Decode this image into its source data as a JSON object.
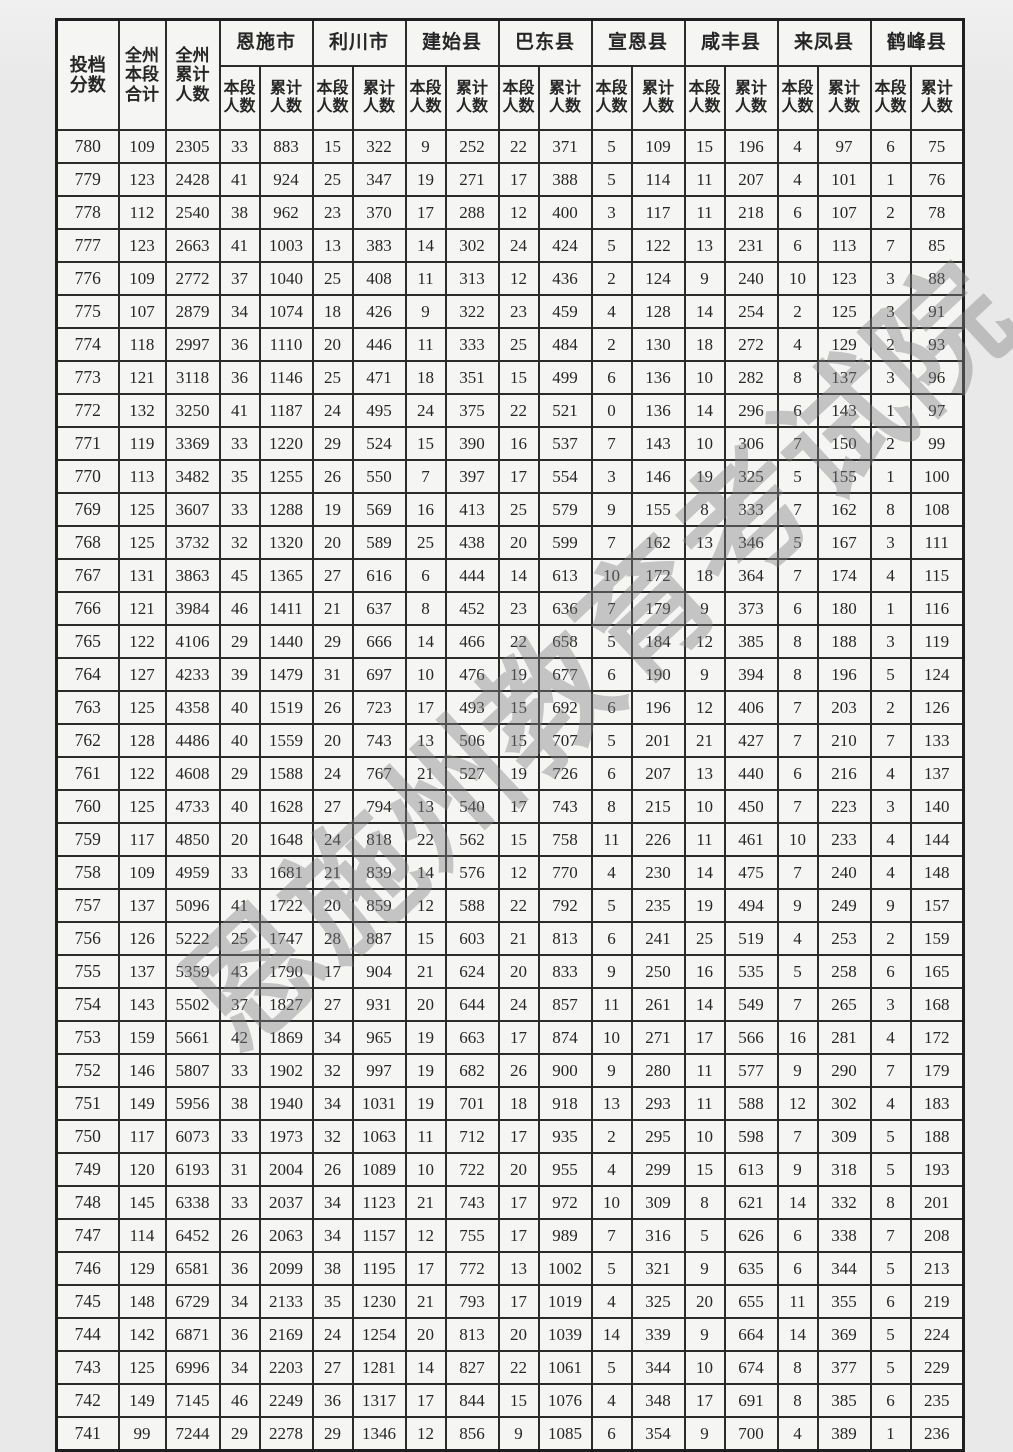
{
  "watermark": {
    "text": "恩施州教育考试院",
    "color": "#808080"
  },
  "table": {
    "corner_header": "投档\n分数",
    "state_segment_header": "全州\n本段\n合计",
    "state_cumulative_header": "全州\n累计\n人数",
    "regions": [
      "恩施市",
      "利川市",
      "建始县",
      "巴东县",
      "宣恩县",
      "咸丰县",
      "来凤县",
      "鹤峰县"
    ],
    "sub_header_segment": "本段\n人数",
    "sub_header_cumulative": "累计\n人数",
    "rows": [
      [
        780,
        109,
        2305,
        33,
        883,
        15,
        322,
        9,
        252,
        22,
        371,
        5,
        109,
        15,
        196,
        4,
        97,
        6,
        75
      ],
      [
        779,
        123,
        2428,
        41,
        924,
        25,
        347,
        19,
        271,
        17,
        388,
        5,
        114,
        11,
        207,
        4,
        101,
        1,
        76
      ],
      [
        778,
        112,
        2540,
        38,
        962,
        23,
        370,
        17,
        288,
        12,
        400,
        3,
        117,
        11,
        218,
        6,
        107,
        2,
        78
      ],
      [
        777,
        123,
        2663,
        41,
        1003,
        13,
        383,
        14,
        302,
        24,
        424,
        5,
        122,
        13,
        231,
        6,
        113,
        7,
        85
      ],
      [
        776,
        109,
        2772,
        37,
        1040,
        25,
        408,
        11,
        313,
        12,
        436,
        2,
        124,
        9,
        240,
        10,
        123,
        3,
        88
      ],
      [
        775,
        107,
        2879,
        34,
        1074,
        18,
        426,
        9,
        322,
        23,
        459,
        4,
        128,
        14,
        254,
        2,
        125,
        3,
        91
      ],
      [
        774,
        118,
        2997,
        36,
        1110,
        20,
        446,
        11,
        333,
        25,
        484,
        2,
        130,
        18,
        272,
        4,
        129,
        2,
        93
      ],
      [
        773,
        121,
        3118,
        36,
        1146,
        25,
        471,
        18,
        351,
        15,
        499,
        6,
        136,
        10,
        282,
        8,
        137,
        3,
        96
      ],
      [
        772,
        132,
        3250,
        41,
        1187,
        24,
        495,
        24,
        375,
        22,
        521,
        0,
        136,
        14,
        296,
        6,
        143,
        1,
        97
      ],
      [
        771,
        119,
        3369,
        33,
        1220,
        29,
        524,
        15,
        390,
        16,
        537,
        7,
        143,
        10,
        306,
        7,
        150,
        2,
        99
      ],
      [
        770,
        113,
        3482,
        35,
        1255,
        26,
        550,
        7,
        397,
        17,
        554,
        3,
        146,
        19,
        325,
        5,
        155,
        1,
        100
      ],
      [
        769,
        125,
        3607,
        33,
        1288,
        19,
        569,
        16,
        413,
        25,
        579,
        9,
        155,
        8,
        333,
        7,
        162,
        8,
        108
      ],
      [
        768,
        125,
        3732,
        32,
        1320,
        20,
        589,
        25,
        438,
        20,
        599,
        7,
        162,
        13,
        346,
        5,
        167,
        3,
        111
      ],
      [
        767,
        131,
        3863,
        45,
        1365,
        27,
        616,
        6,
        444,
        14,
        613,
        10,
        172,
        18,
        364,
        7,
        174,
        4,
        115
      ],
      [
        766,
        121,
        3984,
        46,
        1411,
        21,
        637,
        8,
        452,
        23,
        636,
        7,
        179,
        9,
        373,
        6,
        180,
        1,
        116
      ],
      [
        765,
        122,
        4106,
        29,
        1440,
        29,
        666,
        14,
        466,
        22,
        658,
        5,
        184,
        12,
        385,
        8,
        188,
        3,
        119
      ],
      [
        764,
        127,
        4233,
        39,
        1479,
        31,
        697,
        10,
        476,
        19,
        677,
        6,
        190,
        9,
        394,
        8,
        196,
        5,
        124
      ],
      [
        763,
        125,
        4358,
        40,
        1519,
        26,
        723,
        17,
        493,
        15,
        692,
        6,
        196,
        12,
        406,
        7,
        203,
        2,
        126
      ],
      [
        762,
        128,
        4486,
        40,
        1559,
        20,
        743,
        13,
        506,
        15,
        707,
        5,
        201,
        21,
        427,
        7,
        210,
        7,
        133
      ],
      [
        761,
        122,
        4608,
        29,
        1588,
        24,
        767,
        21,
        527,
        19,
        726,
        6,
        207,
        13,
        440,
        6,
        216,
        4,
        137
      ],
      [
        760,
        125,
        4733,
        40,
        1628,
        27,
        794,
        13,
        540,
        17,
        743,
        8,
        215,
        10,
        450,
        7,
        223,
        3,
        140
      ],
      [
        759,
        117,
        4850,
        20,
        1648,
        24,
        818,
        22,
        562,
        15,
        758,
        11,
        226,
        11,
        461,
        10,
        233,
        4,
        144
      ],
      [
        758,
        109,
        4959,
        33,
        1681,
        21,
        839,
        14,
        576,
        12,
        770,
        4,
        230,
        14,
        475,
        7,
        240,
        4,
        148
      ],
      [
        757,
        137,
        5096,
        41,
        1722,
        20,
        859,
        12,
        588,
        22,
        792,
        5,
        235,
        19,
        494,
        9,
        249,
        9,
        157
      ],
      [
        756,
        126,
        5222,
        25,
        1747,
        28,
        887,
        15,
        603,
        21,
        813,
        6,
        241,
        25,
        519,
        4,
        253,
        2,
        159
      ],
      [
        755,
        137,
        5359,
        43,
        1790,
        17,
        904,
        21,
        624,
        20,
        833,
        9,
        250,
        16,
        535,
        5,
        258,
        6,
        165
      ],
      [
        754,
        143,
        5502,
        37,
        1827,
        27,
        931,
        20,
        644,
        24,
        857,
        11,
        261,
        14,
        549,
        7,
        265,
        3,
        168
      ],
      [
        753,
        159,
        5661,
        42,
        1869,
        34,
        965,
        19,
        663,
        17,
        874,
        10,
        271,
        17,
        566,
        16,
        281,
        4,
        172
      ],
      [
        752,
        146,
        5807,
        33,
        1902,
        32,
        997,
        19,
        682,
        26,
        900,
        9,
        280,
        11,
        577,
        9,
        290,
        7,
        179
      ],
      [
        751,
        149,
        5956,
        38,
        1940,
        34,
        1031,
        19,
        701,
        18,
        918,
        13,
        293,
        11,
        588,
        12,
        302,
        4,
        183
      ],
      [
        750,
        117,
        6073,
        33,
        1973,
        32,
        1063,
        11,
        712,
        17,
        935,
        2,
        295,
        10,
        598,
        7,
        309,
        5,
        188
      ],
      [
        749,
        120,
        6193,
        31,
        2004,
        26,
        1089,
        10,
        722,
        20,
        955,
        4,
        299,
        15,
        613,
        9,
        318,
        5,
        193
      ],
      [
        748,
        145,
        6338,
        33,
        2037,
        34,
        1123,
        21,
        743,
        17,
        972,
        10,
        309,
        8,
        621,
        14,
        332,
        8,
        201
      ],
      [
        747,
        114,
        6452,
        26,
        2063,
        34,
        1157,
        12,
        755,
        17,
        989,
        7,
        316,
        5,
        626,
        6,
        338,
        7,
        208
      ],
      [
        746,
        129,
        6581,
        36,
        2099,
        38,
        1195,
        17,
        772,
        13,
        1002,
        5,
        321,
        9,
        635,
        6,
        344,
        5,
        213
      ],
      [
        745,
        148,
        6729,
        34,
        2133,
        35,
        1230,
        21,
        793,
        17,
        1019,
        4,
        325,
        20,
        655,
        11,
        355,
        6,
        219
      ],
      [
        744,
        142,
        6871,
        36,
        2169,
        24,
        1254,
        20,
        813,
        20,
        1039,
        14,
        339,
        9,
        664,
        14,
        369,
        5,
        224
      ],
      [
        743,
        125,
        6996,
        34,
        2203,
        27,
        1281,
        14,
        827,
        22,
        1061,
        5,
        344,
        10,
        674,
        8,
        377,
        5,
        229
      ],
      [
        742,
        149,
        7145,
        46,
        2249,
        36,
        1317,
        17,
        844,
        15,
        1076,
        4,
        348,
        17,
        691,
        8,
        385,
        6,
        235
      ],
      [
        741,
        99,
        7244,
        29,
        2278,
        29,
        1346,
        12,
        856,
        9,
        1085,
        6,
        354,
        9,
        700,
        4,
        389,
        1,
        236
      ]
    ]
  }
}
